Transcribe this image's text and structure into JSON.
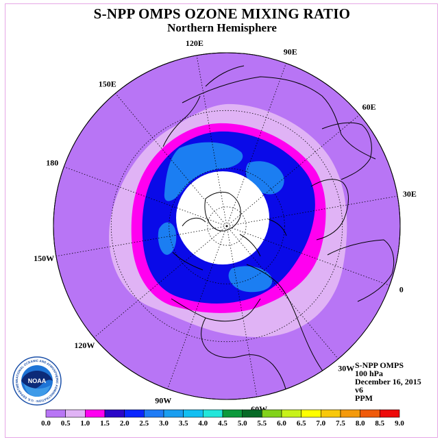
{
  "title": "S-NPP OMPS OZONE MIXING RATIO",
  "subtitle": "Northern Hemisphere",
  "longitude_labels": [
    {
      "text": "90E",
      "lon": 90
    },
    {
      "text": "60E",
      "lon": 60
    },
    {
      "text": "30E",
      "lon": 30
    },
    {
      "text": "0",
      "lon": 0
    },
    {
      "text": "30W",
      "lon": -30
    },
    {
      "text": "60W",
      "lon": -60
    },
    {
      "text": "90W",
      "lon": -90
    },
    {
      "text": "120W",
      "lon": -120
    },
    {
      "text": "150W",
      "lon": -150
    },
    {
      "text": "180",
      "lon": 180
    },
    {
      "text": "150E",
      "lon": 150
    },
    {
      "text": "120E",
      "lon": 120
    }
  ],
  "info": [
    "S-NPP OMPS",
    "100 hPa",
    "December 16, 2015",
    "v6",
    "PPM"
  ],
  "legend": {
    "ticks": [
      "0.0",
      "0.5",
      "1.0",
      "1.5",
      "2.0",
      "2.5",
      "3.0",
      "3.5",
      "4.0",
      "4.5",
      "5.0",
      "5.5",
      "6.0",
      "6.5",
      "7.0",
      "7.5",
      "8.0",
      "8.5",
      "9.0"
    ],
    "colors": [
      "#b875f5",
      "#e0b3f5",
      "#ff00f0",
      "#2a06c8",
      "#0a26ff",
      "#1f7cf6",
      "#1a9ef0",
      "#12bff2",
      "#22e6da",
      "#0c9a3c",
      "#066a26",
      "#82d21a",
      "#c8f21a",
      "#ffff00",
      "#f8c80a",
      "#f49a0c",
      "#f05a0a",
      "#ee0a0a",
      "#80504a"
    ]
  },
  "logo_text": "NOAA",
  "logo_ring_text": "NATIONAL OCEANIC AND ATMOSPHERIC ADMINISTRATION · U.S. DEPARTMENT OF COMMERCE",
  "colors": {
    "outside": "#b875f5",
    "band1": "#e0b3f5",
    "band2": "#ff00f0",
    "band3": "#0a0ae8",
    "band4": "#1b7ef2",
    "pole_gap": "#ffffff",
    "frame": "#e6a6e6"
  }
}
